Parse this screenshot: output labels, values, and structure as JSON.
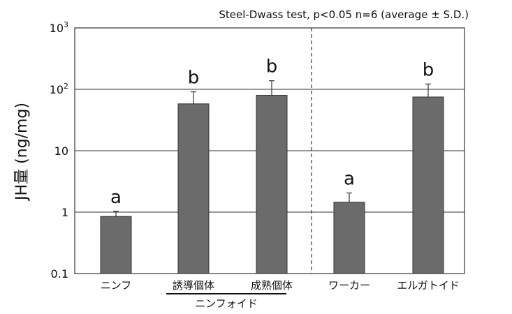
{
  "chart_data": {
    "type": "bar",
    "title": "",
    "annotation": "Steel-Dwass test, p<0.05   n=6 (average ± S.D.)",
    "ylabel": "JH量 (ng/mg)",
    "yscale": "log",
    "ylim": [
      0.1,
      1000
    ],
    "yticks": [
      {
        "value": 0.1,
        "label": "0.1"
      },
      {
        "value": 1,
        "label": "1"
      },
      {
        "value": 10,
        "label": "10"
      },
      {
        "value": 100,
        "label": "10",
        "sup": "2"
      },
      {
        "value": 1000,
        "label": "10",
        "sup": "3"
      }
    ],
    "grid": true,
    "categories": [
      "ニンフ",
      "誘導個体",
      "成熟個体",
      "ワーカー",
      "エルガトイド"
    ],
    "values": [
      0.85,
      58,
      80,
      1.45,
      75
    ],
    "errors": [
      0.18,
      33,
      58,
      0.6,
      47
    ],
    "letters": [
      "a",
      "b",
      "b",
      "a",
      "b"
    ],
    "group_label": "ニンフォイド",
    "bar_color": "#6b6b6b"
  }
}
